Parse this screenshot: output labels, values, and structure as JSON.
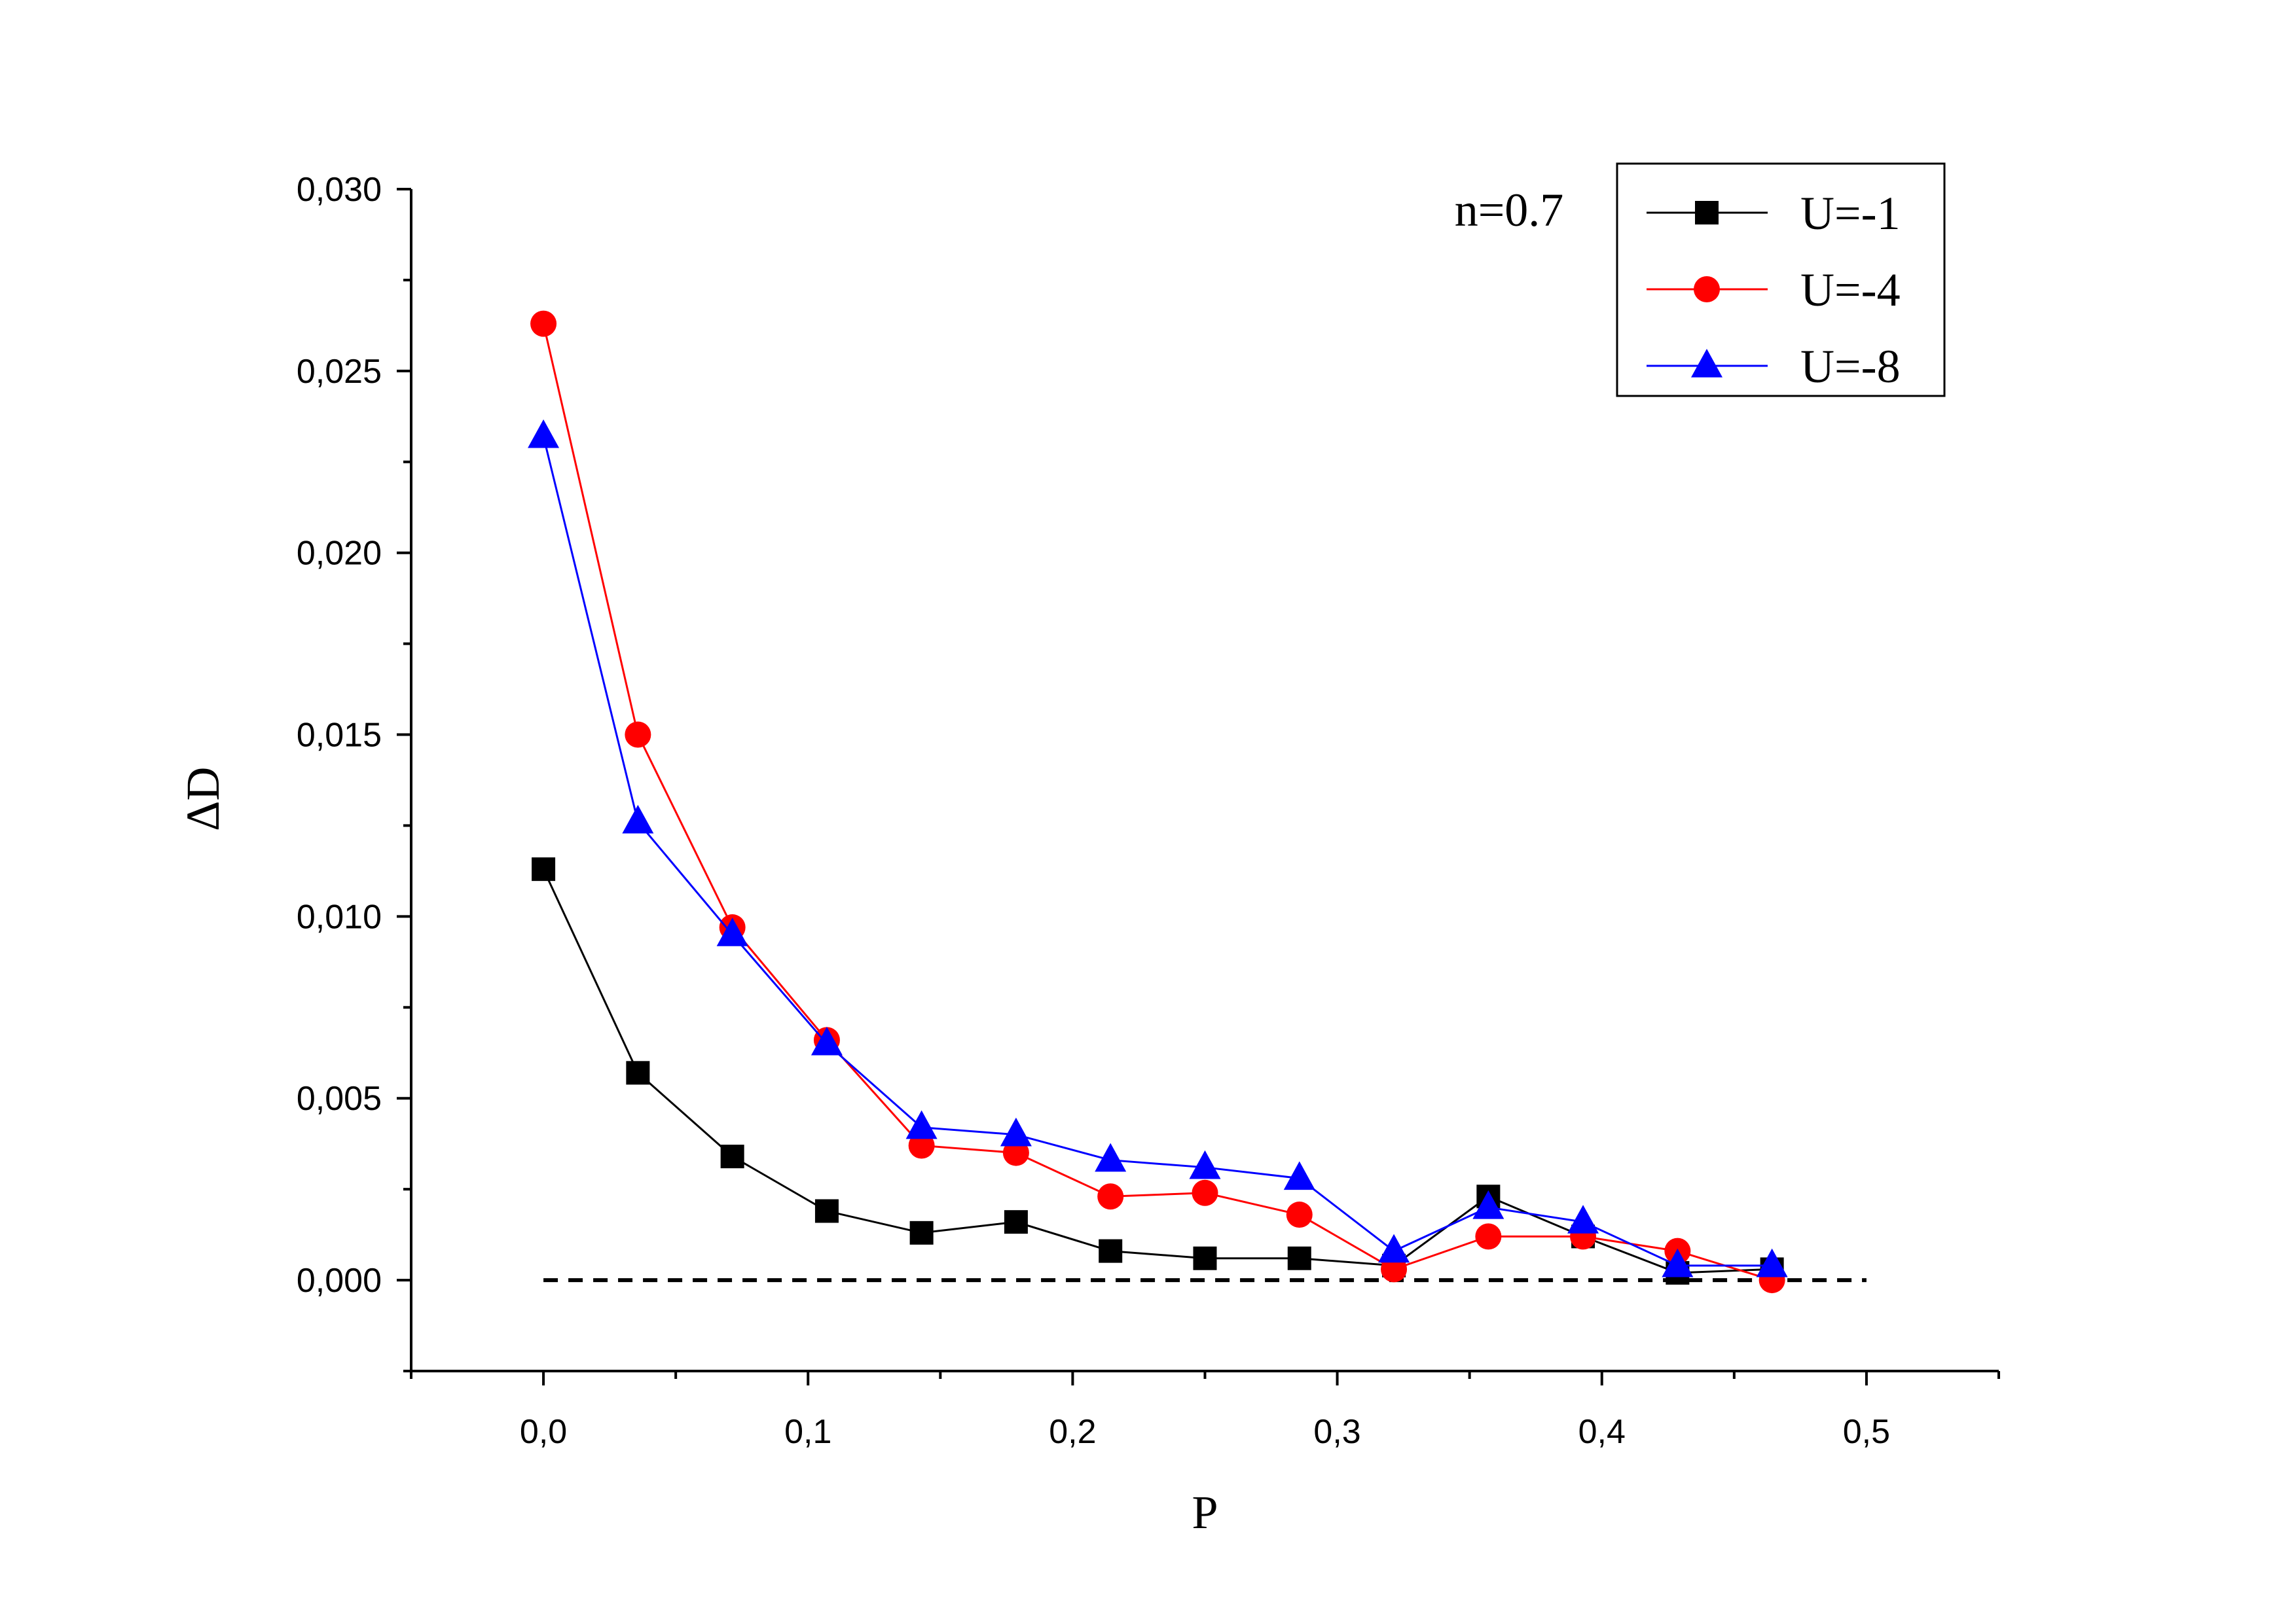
{
  "chart_data": {
    "type": "line",
    "title": "",
    "xlabel": "P",
    "ylabel": "ΔD",
    "annotation": "n=0.7",
    "xlim": [
      -0.05,
      0.55
    ],
    "ylim": [
      -0.0025,
      0.03
    ],
    "x_ticks": [
      0.0,
      0.1,
      0.2,
      0.3,
      0.4,
      0.5
    ],
    "x_tick_labels": [
      "0,0",
      "0,1",
      "0,2",
      "0,3",
      "0,4",
      "0,5"
    ],
    "y_ticks": [
      0.0,
      0.005,
      0.01,
      0.015,
      0.02,
      0.025,
      0.03
    ],
    "y_tick_labels": [
      "0,000",
      "0,005",
      "0,010",
      "0,015",
      "0,020",
      "0,025",
      "0,030"
    ],
    "grid": false,
    "legend_position": "top-right",
    "reference_line": {
      "y": 0.0,
      "x_range": [
        0.0,
        0.5
      ],
      "style": "dashed",
      "color": "#000000"
    },
    "x": [
      0.0,
      0.0357,
      0.0714,
      0.1071,
      0.1429,
      0.1786,
      0.2143,
      0.25,
      0.2857,
      0.3214,
      0.3571,
      0.3929,
      0.4286,
      0.4643
    ],
    "series": [
      {
        "name": "U=-1",
        "marker": "square",
        "color": "#000000",
        "values": [
          0.0113,
          0.0057,
          0.0034,
          0.0019,
          0.0013,
          0.0016,
          0.0008,
          0.0006,
          0.0006,
          0.0004,
          0.0023,
          0.0012,
          0.0002,
          0.0003
        ]
      },
      {
        "name": "U=-4",
        "marker": "circle",
        "color": "#ff0000",
        "values": [
          0.0263,
          0.015,
          0.0097,
          0.0066,
          0.0037,
          0.0035,
          0.0023,
          0.0024,
          0.0018,
          0.0003,
          0.0012,
          0.0012,
          0.0008,
          0.0
        ]
      },
      {
        "name": "U=-8",
        "marker": "triangle",
        "color": "#0000ff",
        "values": [
          0.0232,
          0.0126,
          0.0095,
          0.0065,
          0.0042,
          0.004,
          0.0033,
          0.0031,
          0.0028,
          0.0008,
          0.002,
          0.0016,
          0.0004,
          0.0004
        ]
      }
    ]
  }
}
